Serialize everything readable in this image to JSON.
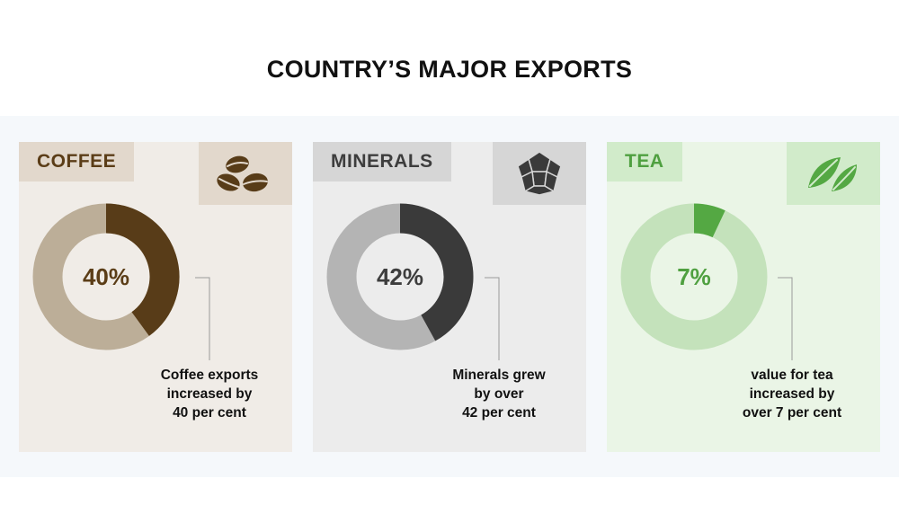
{
  "title": "COUNTRY’S MAJOR EXPORTS",
  "colors": {
    "coffee_bg": "#f0ece7",
    "coffee_label_bg": "#e2d8cc",
    "coffee_text": "#5b3d17",
    "coffee_light": "#bcae98",
    "coffee_dark": "#583c18",
    "coffee_icon_bg": "#e2d8cc",
    "minerals_bg": "#ececec",
    "minerals_label_bg": "#d6d6d6",
    "minerals_text": "#3d3d3d",
    "minerals_light": "#b4b4b4",
    "minerals_dark": "#3a3a3a",
    "minerals_icon_bg": "#d6d6d6",
    "tea_bg": "#eaf5e6",
    "tea_label_bg": "#d1ebca",
    "tea_text": "#4fa040",
    "tea_light": "#c4e2bb",
    "tea_dark": "#54a843",
    "tea_icon_bg": "#d1ebca"
  },
  "cards": [
    {
      "label": "COFFEE",
      "icon": "coffee-beans-icon",
      "percent_text": "40%",
      "caption_lines": [
        "Coffee exports",
        "increased by",
        "40 per cent"
      ]
    },
    {
      "label": "MINERALS",
      "icon": "crystal-icon",
      "percent_text": "42%",
      "caption_lines": [
        "Minerals grew",
        "by over",
        "42 per cent"
      ]
    },
    {
      "label": "TEA",
      "icon": "tea-leaves-icon",
      "percent_text": "7%",
      "caption_lines": [
        "value for tea",
        "increased by",
        "over 7 per cent"
      ]
    }
  ],
  "chart_data": [
    {
      "type": "pie",
      "title": "COFFEE",
      "categories": [
        "Coffee",
        ""
      ],
      "values": [
        40,
        60
      ]
    },
    {
      "type": "pie",
      "title": "MINERALS",
      "categories": [
        "Minerals",
        ""
      ],
      "values": [
        42,
        58
      ]
    },
    {
      "type": "pie",
      "title": "TEA",
      "categories": [
        "Tea",
        ""
      ],
      "values": [
        7,
        93
      ]
    }
  ]
}
